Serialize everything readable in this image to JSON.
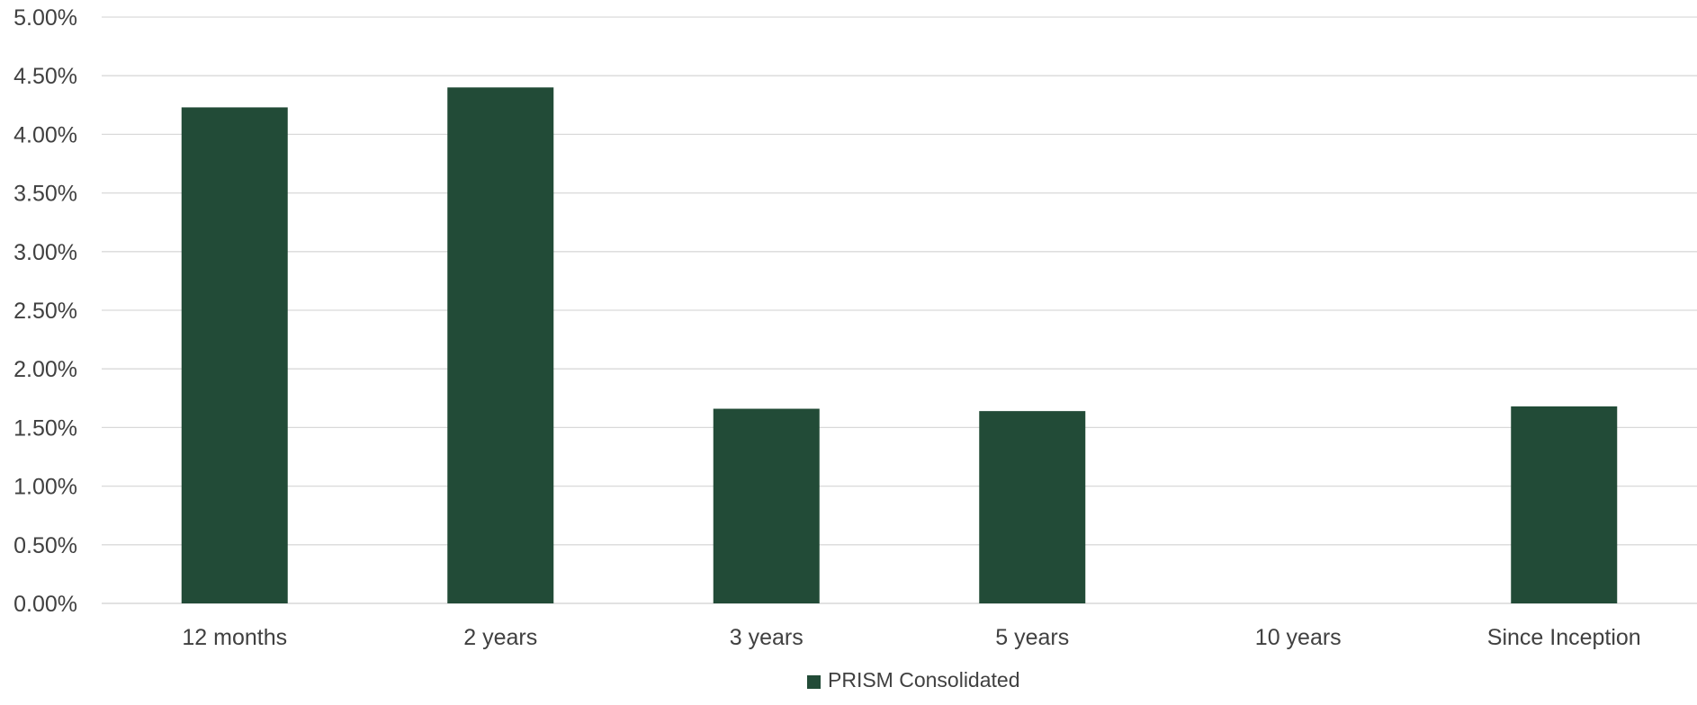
{
  "chart_data": {
    "type": "bar",
    "categories": [
      "12 months",
      "2 years",
      "3 years",
      "5 years",
      "10 years",
      "Since Inception"
    ],
    "series": [
      {
        "name": "PRISM Consolidated",
        "values": [
          4.23,
          4.4,
          1.66,
          1.64,
          null,
          1.68
        ],
        "color": "#224b37"
      }
    ],
    "ylim": [
      0,
      5
    ],
    "yticks": [
      0,
      0.5,
      1,
      1.5,
      2,
      2.5,
      3,
      3.5,
      4,
      4.5,
      5
    ],
    "ytick_labels": [
      "0.00%",
      "0.50%",
      "1.00%",
      "1.50%",
      "2.00%",
      "2.50%",
      "3.00%",
      "3.50%",
      "4.00%",
      "4.50%",
      "5.00%"
    ],
    "grid": true,
    "legend_position": "bottom",
    "gridline_color": "#d9d9d9",
    "text_color": "#404040"
  }
}
